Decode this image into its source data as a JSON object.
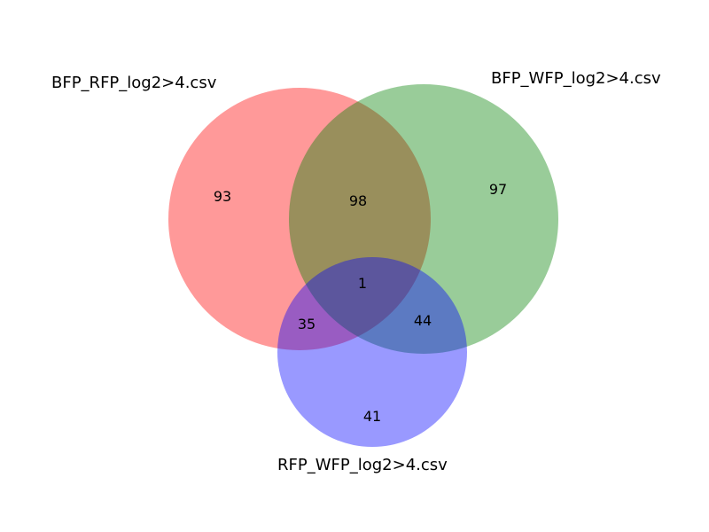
{
  "chart_data": {
    "type": "venn",
    "sets": [
      {
        "id": "A",
        "label": "BFP_RFP_log2>4.csv",
        "color": "#ff0000"
      },
      {
        "id": "B",
        "label": "BFP_WFP_log2>4.csv",
        "color": "#008000"
      },
      {
        "id": "C",
        "label": "RFP_WFP_log2>4.csv",
        "color": "#0000ff"
      }
    ],
    "regions": {
      "A_only": 93,
      "B_only": 97,
      "C_only": 41,
      "A_and_B": 98,
      "A_and_C": 35,
      "B_and_C": 44,
      "A_and_B_and_C": 1
    },
    "circle_opacity": 0.4
  }
}
